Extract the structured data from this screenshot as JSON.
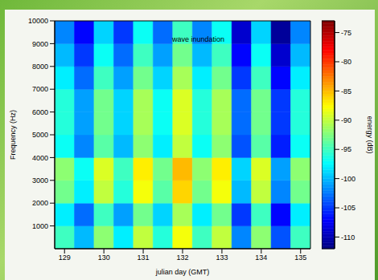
{
  "chart_data": {
    "type": "heatmap",
    "xlabel": "julian day (GMT)",
    "ylabel": "Frequency (Hz)",
    "colorbar_label": "energy (dB)",
    "annotations": [
      {
        "text": "wave inundation",
        "x": 132.4,
        "y": 9200
      }
    ],
    "x_bins": [
      128.75,
      129.25,
      129.75,
      130.25,
      130.75,
      131.25,
      131.75,
      132.25,
      132.75,
      133.25,
      133.75,
      134.25,
      134.75,
      135.25
    ],
    "y_bins": [
      0,
      1000,
      2000,
      3000,
      4000,
      5000,
      6000,
      7000,
      8000,
      9000,
      10000
    ],
    "xlim": [
      128.75,
      135.25
    ],
    "xticks": [
      129,
      130,
      131,
      132,
      133,
      134,
      135
    ],
    "ylim": [
      0,
      10000
    ],
    "yticks": [
      1000,
      2000,
      3000,
      4000,
      5000,
      6000,
      7000,
      8000,
      9000,
      10000
    ],
    "cells": [
      [
        -95,
        -100,
        -92,
        -98,
        -90,
        -96,
        -88,
        -95,
        -90,
        -102,
        -92,
        -104,
        -95
      ],
      [
        -98,
        -103,
        -95,
        -101,
        -93,
        -99,
        -91,
        -98,
        -93,
        -105,
        -95,
        -107,
        -98
      ],
      [
        -93,
        -98,
        -90,
        -96,
        -88,
        -94,
        -86,
        -93,
        -88,
        -100,
        -90,
        -102,
        -93
      ],
      [
        -92,
        -97,
        -89,
        -95,
        -87,
        -93,
        -85,
        -92,
        -87,
        -99,
        -89,
        -101,
        -92
      ],
      [
        -97,
        -102,
        -94,
        -100,
        -92,
        -98,
        -90,
        -97,
        -92,
        -104,
        -94,
        -106,
        -97
      ],
      [
        -96,
        -101,
        -93,
        -99,
        -91,
        -97,
        -89,
        -96,
        -91,
        -103,
        -93,
        -105,
        -96
      ],
      [
        -96,
        -101,
        -93,
        -99,
        -91,
        -97,
        -89,
        -96,
        -91,
        -103,
        -93,
        -105,
        -96
      ],
      [
        -98,
        -103,
        -95,
        -101,
        -93,
        -99,
        -91,
        -98,
        -93,
        -105,
        -95,
        -107,
        -98
      ],
      [
        -100,
        -105,
        -97,
        -103,
        -95,
        -101,
        -93,
        -100,
        -95,
        -107,
        -97,
        -109,
        -100
      ],
      [
        -102,
        -107,
        -99,
        -105,
        -97,
        -103,
        -95,
        -102,
        -97,
        -109,
        -99,
        -111,
        -102
      ]
    ],
    "clim": [
      -112,
      -73
    ],
    "cticks": [
      -110,
      -105,
      -100,
      -95,
      -90,
      -85,
      -80,
      -75
    ]
  }
}
